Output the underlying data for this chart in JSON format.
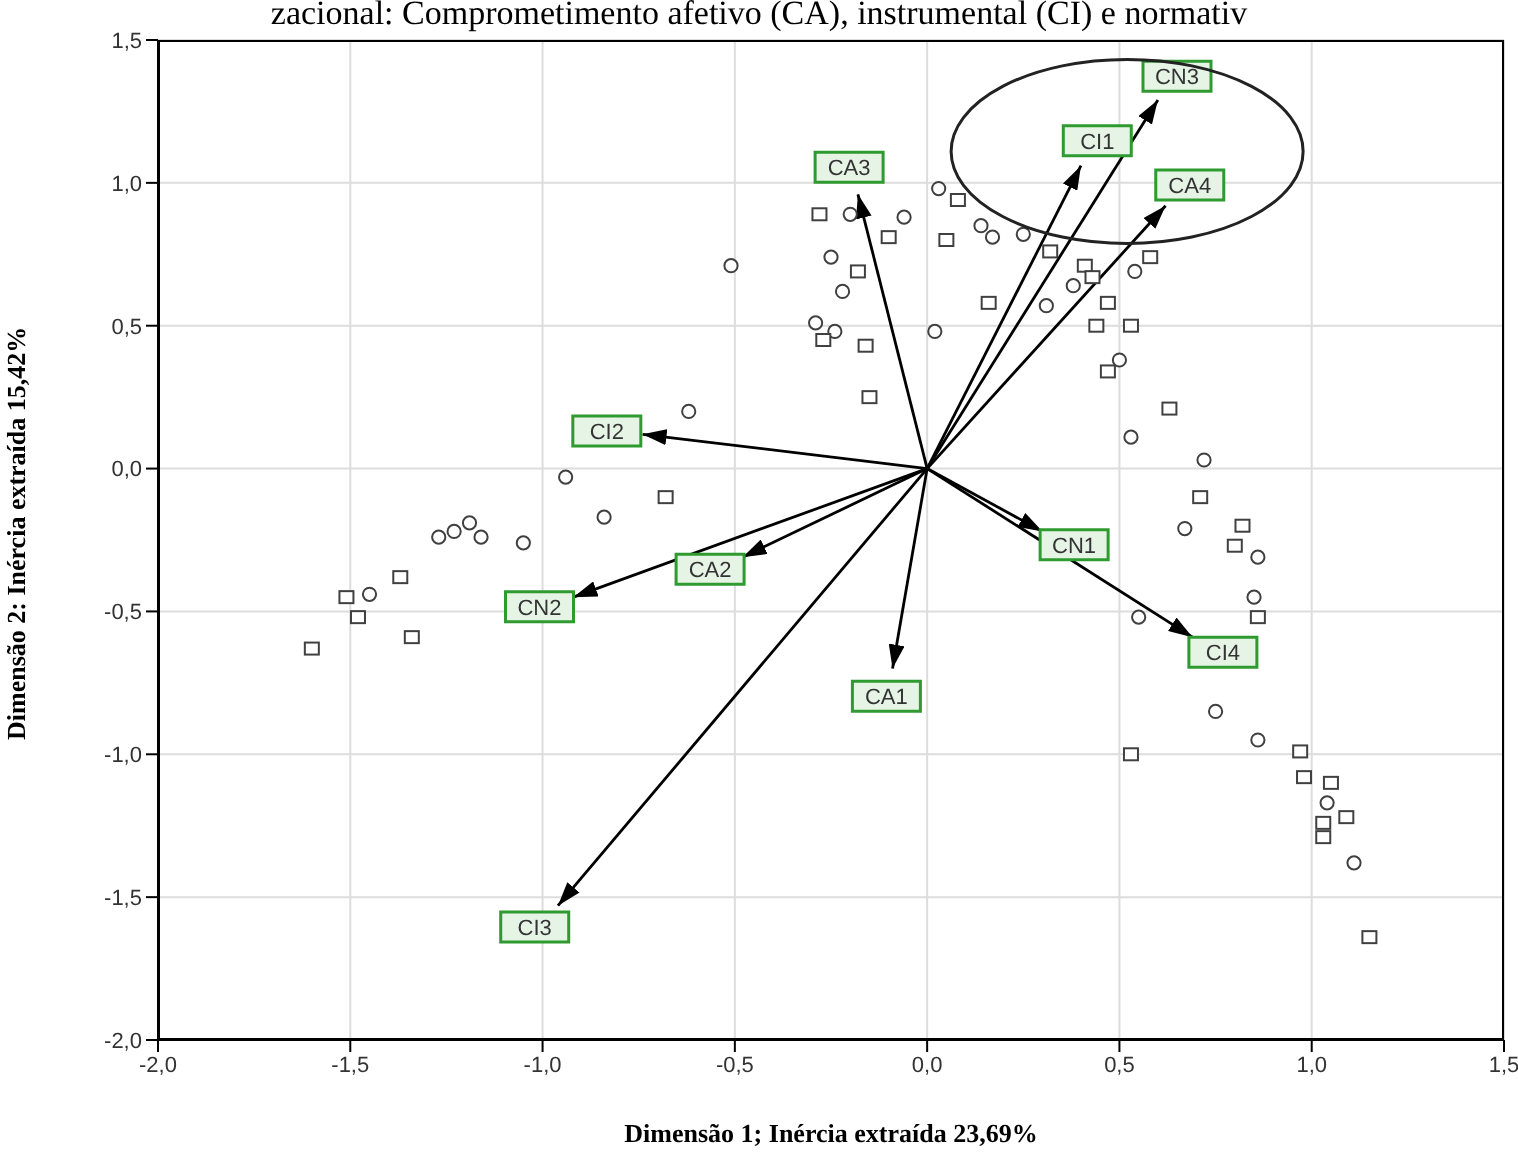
{
  "chart_data": {
    "type": "scatter",
    "title": "zacional: Comprometimento afetivo (CA), instrumental (CI) e normativ",
    "xlabel": "Dimensão 1; Inércia extraída 23,69%",
    "ylabel": "Dimensão 2: Inércia extraída 15,42%",
    "xlim": [
      -2.0,
      1.5
    ],
    "ylim": [
      -2.0,
      1.5
    ],
    "xticks": [
      {
        "value": -2,
        "label": "-2,0"
      },
      {
        "value": -1.5,
        "label": "-1,5"
      },
      {
        "value": -1,
        "label": "-1,0"
      },
      {
        "value": -0.5,
        "label": "-0,5"
      },
      {
        "value": 0,
        "label": "0,0"
      },
      {
        "value": 0.5,
        "label": "0,5"
      },
      {
        "value": 1,
        "label": "1,0"
      },
      {
        "value": 1.5,
        "label": "1,5"
      }
    ],
    "yticks": [
      {
        "value": -2,
        "label": "-2,0"
      },
      {
        "value": -1.5,
        "label": "-1,5"
      },
      {
        "value": -1,
        "label": "-1,0"
      },
      {
        "value": -0.5,
        "label": "-0,5"
      },
      {
        "value": 0,
        "label": "0,0"
      },
      {
        "value": 0.5,
        "label": "0,5"
      },
      {
        "value": 1,
        "label": "1,0"
      },
      {
        "value": 1.5,
        "label": "1,5"
      }
    ],
    "grid": true,
    "legend": false,
    "series": [
      {
        "marker": "circle",
        "color": "#404040",
        "x": [
          -1.45,
          -1.27,
          -1.23,
          -1.19,
          -1.16,
          -1.05,
          -0.94,
          -0.84,
          -0.62,
          -0.24,
          0.02,
          -0.51,
          -0.2,
          -0.25,
          -0.22,
          -0.29,
          0.03,
          0.14,
          0.17,
          0.25,
          -0.06,
          0.31,
          0.38,
          0.54,
          0.5,
          0.53,
          0.72,
          0.67,
          0.86,
          0.85,
          0.55,
          0.75,
          0.86,
          1.04,
          1.11
        ],
        "values": [
          -0.44,
          -0.24,
          -0.22,
          -0.19,
          -0.24,
          -0.26,
          -0.03,
          -0.17,
          0.2,
          0.48,
          0.48,
          0.71,
          0.89,
          0.74,
          0.62,
          0.51,
          0.98,
          0.85,
          0.81,
          0.82,
          0.88,
          0.57,
          0.64,
          0.69,
          0.38,
          0.11,
          0.03,
          -0.21,
          -0.31,
          -0.45,
          -0.52,
          -0.85,
          -0.95,
          -1.17,
          -1.38
        ]
      },
      {
        "marker": "square",
        "color": "#404040",
        "x": [
          -1.6,
          -1.51,
          -1.48,
          -1.37,
          -1.34,
          -0.68,
          -0.16,
          -0.15,
          -0.28,
          -0.18,
          -0.27,
          0.08,
          0.05,
          -0.1,
          0.32,
          0.16,
          0.41,
          0.43,
          0.58,
          0.44,
          0.47,
          0.53,
          0.47,
          0.63,
          0.71,
          0.82,
          0.8,
          0.86,
          0.53,
          0.97,
          0.98,
          1.05,
          1.09,
          1.03,
          1.03,
          1.15
        ],
        "values": [
          -0.63,
          -0.45,
          -0.52,
          -0.38,
          -0.59,
          -0.1,
          0.43,
          0.25,
          0.89,
          0.69,
          0.45,
          0.94,
          0.8,
          0.81,
          0.76,
          0.58,
          0.71,
          0.67,
          0.74,
          0.5,
          0.58,
          0.5,
          0.34,
          0.21,
          -0.1,
          -0.2,
          -0.27,
          -0.52,
          -1.0,
          -0.99,
          -1.08,
          -1.1,
          -1.22,
          -1.24,
          -1.29,
          -1.64
        ]
      },
      {
        "type": "line",
        "name": "CA3",
        "color": "#000000",
        "x": [
          0,
          -0.18
        ],
        "values": [
          0,
          0.96
        ]
      },
      {
        "type": "line",
        "name": "CI1",
        "color": "#000000",
        "x": [
          0,
          0.4
        ],
        "values": [
          0,
          1.06
        ]
      },
      {
        "type": "line",
        "name": "CN3",
        "color": "#000000",
        "x": [
          0,
          0.6
        ],
        "values": [
          0,
          1.29
        ]
      },
      {
        "type": "line",
        "name": "CA4",
        "color": "#000000",
        "x": [
          0,
          0.62
        ],
        "values": [
          0,
          0.92
        ]
      },
      {
        "type": "line",
        "name": "CN1",
        "color": "#000000",
        "x": [
          0,
          0.3
        ],
        "values": [
          0,
          -0.22
        ]
      },
      {
        "type": "line",
        "name": "CI4",
        "color": "#000000",
        "x": [
          0,
          0.69
        ],
        "values": [
          0,
          -0.59
        ]
      },
      {
        "type": "line",
        "name": "CI2",
        "color": "#000000",
        "x": [
          0,
          -0.74
        ],
        "values": [
          0,
          0.12
        ]
      },
      {
        "type": "line",
        "name": "CA2",
        "color": "#000000",
        "x": [
          0,
          -0.48
        ],
        "values": [
          0,
          -0.31
        ]
      },
      {
        "type": "line",
        "name": "CN2",
        "color": "#000000",
        "x": [
          0,
          -0.92
        ],
        "values": [
          0,
          -0.45
        ]
      },
      {
        "type": "line",
        "name": "CA1",
        "color": "#000000",
        "x": [
          0,
          -0.09
        ],
        "values": [
          0,
          -0.7
        ]
      },
      {
        "type": "line",
        "name": "CI3",
        "color": "#000000",
        "x": [
          0,
          -0.96
        ],
        "values": [
          0,
          -1.53
        ]
      }
    ]
  }
}
